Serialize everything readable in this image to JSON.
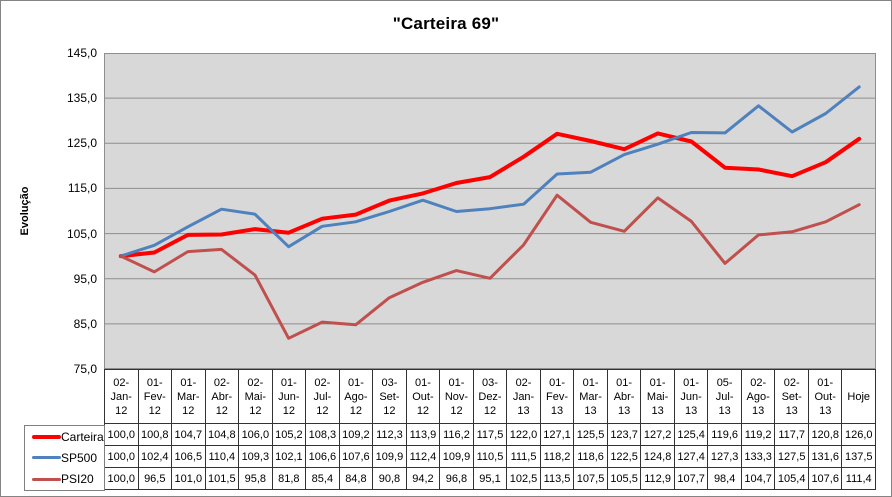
{
  "window": {
    "title": "\"Carteira 69\""
  },
  "chart_data": {
    "type": "line",
    "title": "\"Carteira 69\"",
    "xlabel": "",
    "ylabel": "Evolução",
    "ylim": [
      75,
      145
    ],
    "ytick_step": 10,
    "ytick_labels": [
      "145,0",
      "135,0",
      "125,0",
      "115,0",
      "105,0",
      "95,0",
      "85,0",
      "75,0"
    ],
    "grid": true,
    "plot_bg_color": "#D8D8D8",
    "gridline_color": "#8E8E8E",
    "table_border_color": "#333333",
    "decimal_separator": ",",
    "legend_position": "bottom-left",
    "categories": [
      "02-Jan-12",
      "01-Fev-12",
      "01-Mar-12",
      "02-Abr-12",
      "02-Mai-12",
      "01-Jun-12",
      "02-Jul-12",
      "01-Ago-12",
      "03-Set-12",
      "01-Out-12",
      "01-Nov-12",
      "03-Dez-12",
      "02-Jan-13",
      "01-Fev-13",
      "01-Mar-13",
      "01-Abr-13",
      "01-Mai-13",
      "01-Jun-13",
      "05-Jul-13",
      "02-Ago-13",
      "02-Set-13",
      "01-Out-13",
      "Hoje"
    ],
    "series": [
      {
        "name": "Carteira",
        "color": "#FF0000",
        "line_width": 4,
        "values": [
          100.0,
          100.8,
          104.7,
          104.8,
          106.0,
          105.2,
          108.3,
          109.2,
          112.3,
          113.9,
          116.2,
          117.5,
          122.0,
          127.1,
          125.5,
          123.7,
          127.2,
          125.4,
          119.6,
          119.2,
          117.7,
          120.8,
          126.0
        ]
      },
      {
        "name": "SP500",
        "color": "#4F81BD",
        "line_width": 3,
        "values": [
          100.0,
          102.4,
          106.5,
          110.4,
          109.3,
          102.1,
          106.6,
          107.6,
          109.9,
          112.4,
          109.9,
          110.5,
          111.5,
          118.2,
          118.6,
          122.5,
          124.8,
          127.4,
          127.3,
          133.3,
          127.5,
          131.6,
          137.5
        ]
      },
      {
        "name": "PSI20",
        "color": "#C0504D",
        "line_width": 3,
        "values": [
          100.0,
          96.5,
          101.0,
          101.5,
          95.8,
          81.8,
          85.4,
          84.8,
          90.8,
          94.2,
          96.8,
          95.1,
          102.5,
          113.5,
          107.5,
          105.5,
          112.9,
          107.7,
          98.4,
          104.7,
          105.4,
          107.6,
          111.4
        ]
      }
    ]
  }
}
